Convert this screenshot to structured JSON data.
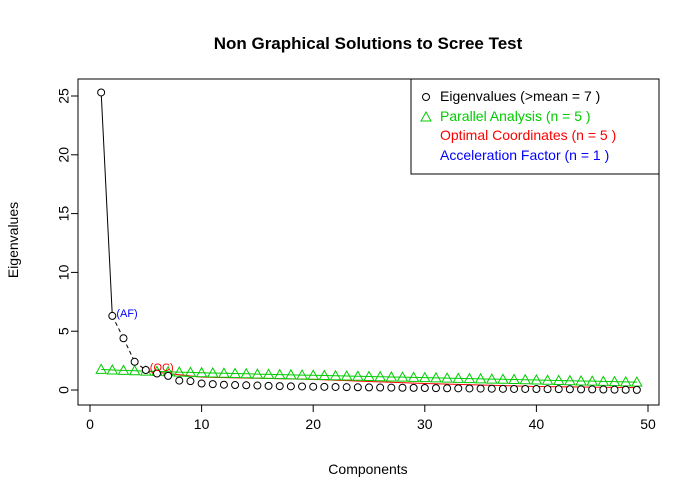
{
  "chart_data": {
    "type": "scatter",
    "title": "Non Graphical Solutions to Scree Test",
    "xlabel": "Components",
    "ylabel": "Eigenvalues",
    "xlim": [
      0,
      50
    ],
    "ylim": [
      0,
      25
    ],
    "x_ticks": [
      0,
      10,
      20,
      30,
      40,
      50
    ],
    "y_ticks": [
      0,
      5,
      10,
      15,
      20,
      25
    ],
    "grid": false,
    "legend_position": "top-right",
    "series": [
      {
        "name": "Eigenvalues (>mean  =  7 )",
        "marker": "circle",
        "color": "#000000",
        "x": [
          1,
          2,
          3,
          4,
          5,
          6,
          7,
          8,
          9,
          10,
          11,
          12,
          13,
          14,
          15,
          16,
          17,
          18,
          19,
          20,
          21,
          22,
          23,
          24,
          25,
          26,
          27,
          28,
          29,
          30,
          31,
          32,
          33,
          34,
          35,
          36,
          37,
          38,
          39,
          40,
          41,
          42,
          43,
          44,
          45,
          46,
          47,
          48,
          49
        ],
        "values": [
          25.3,
          6.3,
          4.4,
          2.4,
          1.7,
          1.4,
          1.2,
          0.8,
          0.75,
          0.55,
          0.5,
          0.45,
          0.42,
          0.4,
          0.38,
          0.35,
          0.33,
          0.31,
          0.3,
          0.28,
          0.27,
          0.26,
          0.24,
          0.23,
          0.22,
          0.21,
          0.2,
          0.19,
          0.18,
          0.17,
          0.16,
          0.15,
          0.14,
          0.13,
          0.12,
          0.11,
          0.1,
          0.09,
          0.09,
          0.08,
          0.07,
          0.07,
          0.06,
          0.05,
          0.05,
          0.04,
          0.03,
          0.02,
          0.01
        ]
      },
      {
        "name": "Parallel Analysis (n =  5 )",
        "marker": "triangle",
        "color": "#00cc00",
        "x": [
          1,
          2,
          3,
          4,
          5,
          6,
          7,
          8,
          9,
          10,
          11,
          12,
          13,
          14,
          15,
          16,
          17,
          18,
          19,
          20,
          21,
          22,
          23,
          24,
          25,
          26,
          27,
          28,
          29,
          30,
          31,
          32,
          33,
          34,
          35,
          36,
          37,
          38,
          39,
          40,
          41,
          42,
          43,
          44,
          45,
          46,
          47,
          48,
          49
        ],
        "values": [
          1.75,
          1.7,
          1.67,
          1.64,
          1.61,
          1.58,
          1.55,
          1.52,
          1.5,
          1.47,
          1.45,
          1.42,
          1.4,
          1.38,
          1.35,
          1.33,
          1.31,
          1.29,
          1.27,
          1.25,
          1.23,
          1.21,
          1.19,
          1.17,
          1.15,
          1.13,
          1.11,
          1.09,
          1.07,
          1.05,
          1.03,
          1.01,
          0.99,
          0.97,
          0.95,
          0.93,
          0.91,
          0.89,
          0.87,
          0.85,
          0.83,
          0.81,
          0.79,
          0.77,
          0.75,
          0.73,
          0.71,
          0.69,
          0.67
        ]
      },
      {
        "name": "Optimal Coordinates (n =  5 )",
        "marker": "line",
        "color": "#ff0000",
        "x": [
          5,
          10,
          20,
          30,
          40,
          49
        ],
        "values": [
          1.6,
          1.1,
          0.9,
          0.55,
          0.3,
          0.2
        ]
      },
      {
        "name": "Acceleration Factor (n =  1 )",
        "marker": "none",
        "color": "#0000ff"
      }
    ],
    "annotations": [
      {
        "text": "(AF)",
        "x": 2,
        "y": 6.3,
        "color": "#0000ff"
      },
      {
        "text": "(OC)",
        "x": 5,
        "y": 1.7,
        "color": "#ff0000"
      }
    ]
  }
}
